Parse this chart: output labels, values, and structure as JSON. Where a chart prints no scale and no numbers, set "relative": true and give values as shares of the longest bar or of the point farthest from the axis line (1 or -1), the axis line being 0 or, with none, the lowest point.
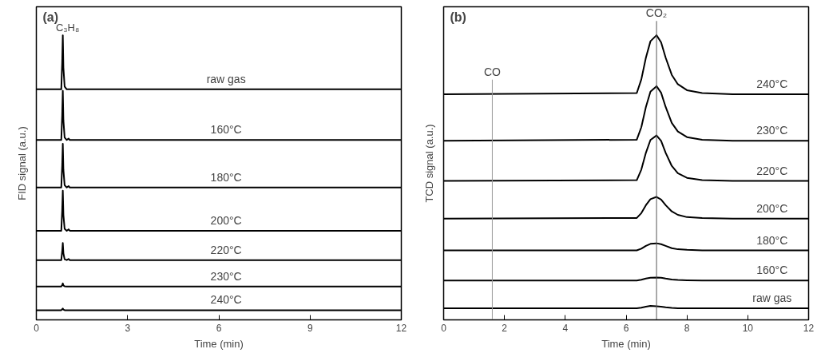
{
  "chart_data": [
    {
      "type": "line",
      "relative": true,
      "xlabel": "Time (min)",
      "ylabel": "FID signal (a.u.)",
      "xlim": [
        0,
        12
      ],
      "xticks": [
        0,
        3,
        6,
        9,
        12
      ],
      "grid": false,
      "legend": false,
      "marker": "none",
      "line_style": "solid",
      "tick_labels": "x",
      "annotations": [
        "(a)",
        {
          "text": "C₃H₈",
          "x": 0.87,
          "y": 1.0
        }
      ],
      "x": [
        0,
        0.82,
        0.85,
        0.87,
        0.89,
        0.93,
        1.0,
        1.06,
        1.1,
        12
      ],
      "series": [
        {
          "name": "raw gas",
          "color": "#000000",
          "values": [
            0.81,
            0.81,
            0.905,
            1.0,
            0.886,
            0.82,
            0.81,
            0.81,
            0.81,
            0.81
          ]
        },
        {
          "name": "160°C",
          "color": "#000000",
          "values": [
            0.632,
            0.632,
            0.719,
            0.805,
            0.701,
            0.641,
            0.632,
            0.637,
            0.632,
            0.632
          ]
        },
        {
          "name": "180°C",
          "color": "#000000",
          "values": [
            0.465,
            0.465,
            0.542,
            0.619,
            0.527,
            0.473,
            0.465,
            0.47,
            0.465,
            0.465
          ]
        },
        {
          "name": "200°C",
          "color": "#000000",
          "values": [
            0.313,
            0.313,
            0.384,
            0.454,
            0.369,
            0.32,
            0.313,
            0.318,
            0.313,
            0.313
          ]
        },
        {
          "name": "220°C",
          "color": "#000000",
          "values": [
            0.21,
            0.21,
            0.24,
            0.27,
            0.234,
            0.213,
            0.21,
            0.214,
            0.21,
            0.21
          ]
        },
        {
          "name": "230°C",
          "color": "#000000",
          "values": [
            0.117,
            0.117,
            0.122,
            0.128,
            0.121,
            0.118,
            0.117,
            0.117,
            0.117,
            0.117
          ]
        },
        {
          "name": "240°C",
          "color": "#000000",
          "values": [
            0.034,
            0.034,
            0.037,
            0.04,
            0.036,
            0.034,
            0.034,
            0.034,
            0.034,
            0.034
          ]
        }
      ]
    },
    {
      "type": "line",
      "relative": true,
      "xlabel": "Time (min)",
      "ylabel": "TCD signal (a.u.)",
      "xlim": [
        0,
        12
      ],
      "xticks": [
        0,
        2,
        4,
        6,
        8,
        10,
        12
      ],
      "grid": false,
      "legend": false,
      "marker": "none",
      "line_style": "solid",
      "tick_labels": "x",
      "annotations": [
        "(b)"
      ],
      "ref_lines": [
        {
          "axis": "x",
          "value": 1.6,
          "label": "CO",
          "color": "#9a9a9a"
        },
        {
          "axis": "x",
          "value": 7.0,
          "label": "CO₂",
          "color": "#555555"
        }
      ],
      "x": [
        0,
        6.35,
        6.5,
        6.65,
        6.8,
        7.0,
        7.15,
        7.3,
        7.5,
        7.7,
        8.0,
        8.5,
        9.5,
        12
      ],
      "series": [
        {
          "name": "240°C",
          "color": "#000000",
          "values": [
            0.793,
            0.797,
            0.845,
            0.921,
            0.979,
            1.0,
            0.975,
            0.921,
            0.861,
            0.828,
            0.807,
            0.797,
            0.793,
            0.793
          ]
        },
        {
          "name": "230°C",
          "color": "#000000",
          "values": [
            0.629,
            0.633,
            0.677,
            0.748,
            0.802,
            0.821,
            0.798,
            0.748,
            0.692,
            0.662,
            0.642,
            0.633,
            0.629,
            0.629
          ]
        },
        {
          "name": "220°C",
          "color": "#000000",
          "values": [
            0.488,
            0.491,
            0.528,
            0.587,
            0.632,
            0.648,
            0.629,
            0.587,
            0.541,
            0.515,
            0.499,
            0.491,
            0.488,
            0.488
          ]
        },
        {
          "name": "200°C",
          "color": "#000000",
          "values": [
            0.356,
            0.358,
            0.375,
            0.403,
            0.424,
            0.432,
            0.423,
            0.403,
            0.381,
            0.369,
            0.361,
            0.358,
            0.356,
            0.356
          ]
        },
        {
          "name": "180°C",
          "color": "#000000",
          "values": [
            0.244,
            0.244,
            0.25,
            0.26,
            0.267,
            0.269,
            0.266,
            0.26,
            0.252,
            0.248,
            0.246,
            0.244,
            0.244,
            0.244
          ]
        },
        {
          "name": "160°C",
          "color": "#000000",
          "values": [
            0.138,
            0.138,
            0.141,
            0.145,
            0.148,
            0.149,
            0.148,
            0.145,
            0.142,
            0.14,
            0.139,
            0.138,
            0.138,
            0.138
          ]
        },
        {
          "name": "raw gas",
          "color": "#000000",
          "values": [
            0.041,
            0.041,
            0.043,
            0.046,
            0.049,
            0.048,
            0.046,
            0.044,
            0.042,
            0.041,
            0.041,
            0.041,
            0.041,
            0.041
          ]
        }
      ]
    }
  ]
}
